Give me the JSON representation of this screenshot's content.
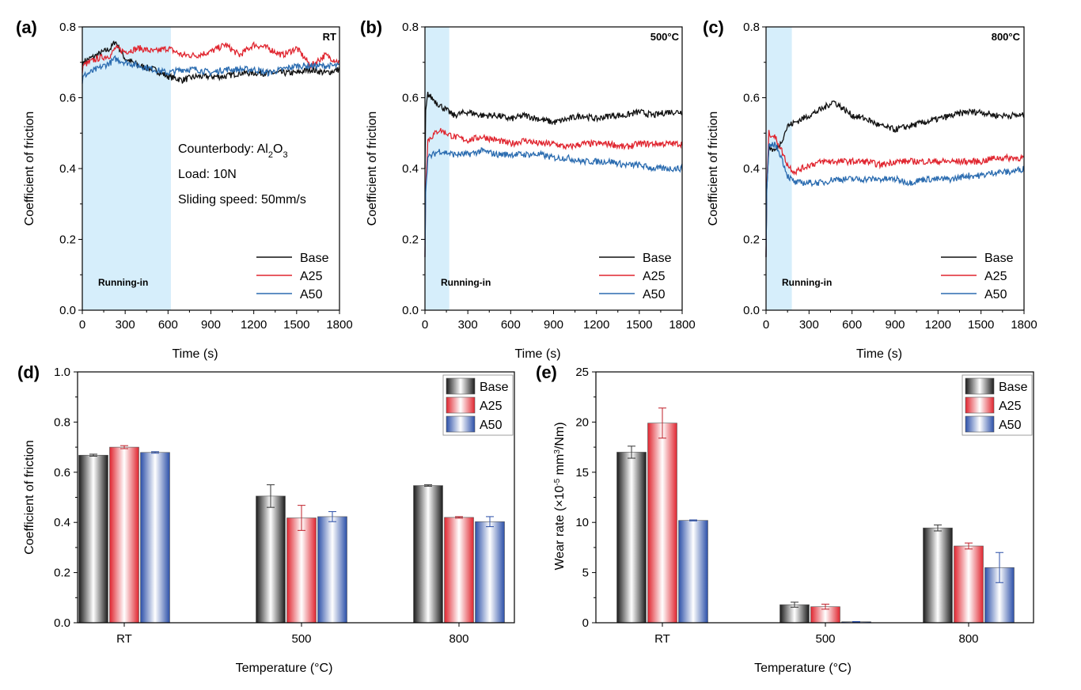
{
  "colors": {
    "Base": "#111111",
    "A25": "#e0252f",
    "A50": "#2b6cb0",
    "runin": "#d6eefb"
  },
  "top_panels": [
    {
      "label": "(a)",
      "temp": "RT",
      "ylabel": "Coefficient of friction",
      "xlabel": "Time (s)",
      "running_in": "Running-in",
      "running_in_end": 620,
      "annotation": {
        "l1": "Counterbody: Al",
        "l1sub": "2",
        "l1end": "O",
        "l1sub2": "3",
        "l2": "Load: 10N",
        "l3": "Sliding speed: 50mm/s"
      }
    },
    {
      "label": "(b)",
      "temp": "500°C",
      "ylabel": "Coefficient of friction",
      "xlabel": "Time (s)",
      "running_in": "Running-in",
      "running_in_end": 170
    },
    {
      "label": "(c)",
      "temp": "800°C",
      "ylabel": "Coefficient of friction",
      "xlabel": "Time (s)",
      "running_in": "Running-in",
      "running_in_end": 180
    }
  ],
  "bottom_panels": [
    {
      "label": "(d)",
      "ylabel": "Coefficient of friction",
      "xlabel": "Temperature (°C)"
    },
    {
      "label": "(e)",
      "ylabel": "Wear rate (×10",
      "ylabel_sup": "-5",
      "ylabel_mid": " mm",
      "ylabel_sup2": "3",
      "ylabel_end": "/Nm)",
      "xlabel": "Temperature (°C)"
    }
  ],
  "chart_data": [
    {
      "type": "line",
      "title": "RT",
      "xlabel": "Time (s)",
      "ylabel": "Coefficient of friction",
      "xlim": [
        0,
        1800
      ],
      "ylim": [
        0.0,
        0.8
      ],
      "xticks": [
        "0",
        "300",
        "600",
        "900",
        "1200",
        "1500",
        "1800"
      ],
      "yticks": [
        "0.0",
        "0.2",
        "0.4",
        "0.6",
        "0.8"
      ],
      "x": [
        0,
        100,
        200,
        230,
        300,
        400,
        500,
        600,
        700,
        800,
        900,
        1000,
        1100,
        1200,
        1300,
        1400,
        1500,
        1600,
        1700,
        1800
      ],
      "series": [
        {
          "name": "Base",
          "values": [
            0.7,
            0.72,
            0.74,
            0.76,
            0.71,
            0.69,
            0.68,
            0.66,
            0.65,
            0.66,
            0.66,
            0.66,
            0.67,
            0.67,
            0.67,
            0.67,
            0.67,
            0.68,
            0.67,
            0.68
          ]
        },
        {
          "name": "A25",
          "values": [
            0.69,
            0.71,
            0.72,
            0.74,
            0.73,
            0.74,
            0.73,
            0.74,
            0.72,
            0.72,
            0.73,
            0.75,
            0.72,
            0.75,
            0.74,
            0.72,
            0.74,
            0.69,
            0.72,
            0.7
          ]
        },
        {
          "name": "A50",
          "values": [
            0.66,
            0.68,
            0.7,
            0.71,
            0.7,
            0.69,
            0.68,
            0.67,
            0.68,
            0.68,
            0.67,
            0.68,
            0.68,
            0.68,
            0.67,
            0.68,
            0.69,
            0.69,
            0.69,
            0.69
          ]
        }
      ],
      "legend": "bottom-right"
    },
    {
      "type": "line",
      "title": "500°C",
      "xlabel": "Time (s)",
      "ylabel": "Coefficient of friction",
      "xlim": [
        0,
        1800
      ],
      "ylim": [
        0.0,
        0.8
      ],
      "xticks": [
        "0",
        "300",
        "600",
        "900",
        "1200",
        "1500",
        "1800"
      ],
      "yticks": [
        "0.0",
        "0.2",
        "0.4",
        "0.6",
        "0.8"
      ],
      "x": [
        0,
        20,
        100,
        200,
        300,
        400,
        500,
        600,
        700,
        800,
        900,
        1000,
        1100,
        1200,
        1300,
        1400,
        1500,
        1600,
        1700,
        1800
      ],
      "series": [
        {
          "name": "Base",
          "values": [
            0.55,
            0.61,
            0.58,
            0.55,
            0.56,
            0.55,
            0.55,
            0.54,
            0.55,
            0.54,
            0.53,
            0.54,
            0.55,
            0.54,
            0.55,
            0.55,
            0.56,
            0.55,
            0.56,
            0.56
          ]
        },
        {
          "name": "A25",
          "values": [
            0.3,
            0.48,
            0.51,
            0.49,
            0.48,
            0.49,
            0.48,
            0.47,
            0.48,
            0.47,
            0.47,
            0.46,
            0.47,
            0.47,
            0.47,
            0.46,
            0.47,
            0.47,
            0.47,
            0.47
          ]
        },
        {
          "name": "A50",
          "values": [
            0.3,
            0.43,
            0.45,
            0.44,
            0.44,
            0.45,
            0.44,
            0.44,
            0.44,
            0.44,
            0.43,
            0.43,
            0.42,
            0.42,
            0.42,
            0.41,
            0.41,
            0.4,
            0.4,
            0.4
          ]
        }
      ],
      "legend": "bottom-right"
    },
    {
      "type": "line",
      "title": "800°C",
      "xlabel": "Time (s)",
      "ylabel": "Coefficient of friction",
      "xlim": [
        0,
        1800
      ],
      "ylim": [
        0.0,
        0.8
      ],
      "xticks": [
        "0",
        "300",
        "600",
        "900",
        "1200",
        "1500",
        "1800"
      ],
      "yticks": [
        "0.0",
        "0.2",
        "0.4",
        "0.6",
        "0.8"
      ],
      "x": [
        0,
        20,
        60,
        100,
        150,
        200,
        300,
        400,
        470,
        600,
        700,
        800,
        900,
        1000,
        1100,
        1200,
        1300,
        1400,
        1500,
        1600,
        1700,
        1800
      ],
      "series": [
        {
          "name": "Base",
          "values": [
            0.3,
            0.46,
            0.45,
            0.47,
            0.52,
            0.53,
            0.55,
            0.57,
            0.59,
            0.55,
            0.54,
            0.52,
            0.51,
            0.52,
            0.53,
            0.54,
            0.55,
            0.56,
            0.56,
            0.55,
            0.55,
            0.55
          ]
        },
        {
          "name": "A25",
          "values": [
            0.3,
            0.5,
            0.49,
            0.46,
            0.41,
            0.39,
            0.41,
            0.42,
            0.42,
            0.42,
            0.42,
            0.41,
            0.42,
            0.42,
            0.42,
            0.42,
            0.42,
            0.42,
            0.42,
            0.43,
            0.43,
            0.43
          ]
        },
        {
          "name": "A50",
          "values": [
            0.3,
            0.46,
            0.47,
            0.44,
            0.38,
            0.36,
            0.36,
            0.36,
            0.37,
            0.37,
            0.37,
            0.37,
            0.37,
            0.36,
            0.37,
            0.37,
            0.37,
            0.38,
            0.38,
            0.39,
            0.39,
            0.4
          ]
        }
      ],
      "legend": "bottom-right"
    },
    {
      "type": "bar",
      "xlabel": "Temperature (°C)",
      "ylabel": "Coefficient of friction",
      "categories": [
        "RT",
        "500",
        "800"
      ],
      "ylim": [
        0.0,
        1.0
      ],
      "yticks": [
        "0.0",
        "0.2",
        "0.4",
        "0.6",
        "0.8",
        "1.0"
      ],
      "series": [
        {
          "name": "Base",
          "values": [
            0.668,
            0.505,
            0.547
          ],
          "errors": [
            0.004,
            0.045,
            0.003
          ]
        },
        {
          "name": "A25",
          "values": [
            0.7,
            0.418,
            0.42
          ],
          "errors": [
            0.006,
            0.05,
            0.003
          ]
        },
        {
          "name": "A50",
          "values": [
            0.679,
            0.423,
            0.403
          ],
          "errors": [
            0.003,
            0.02,
            0.02
          ]
        }
      ],
      "legend": "top-right"
    },
    {
      "type": "bar",
      "xlabel": "Temperature (°C)",
      "ylabel": "Wear rate (×10-5 mm3/Nm)",
      "categories": [
        "RT",
        "500",
        "800"
      ],
      "ylim": [
        0,
        25
      ],
      "yticks": [
        "0",
        "5",
        "10",
        "15",
        "20",
        "25"
      ],
      "series": [
        {
          "name": "Base",
          "values": [
            17.0,
            1.8,
            9.45
          ],
          "errors": [
            0.6,
            0.25,
            0.3
          ]
        },
        {
          "name": "A25",
          "values": [
            19.9,
            1.6,
            7.65
          ],
          "errors": [
            1.5,
            0.25,
            0.3
          ]
        },
        {
          "name": "A50",
          "values": [
            10.2,
            0.1,
            5.5
          ],
          "errors": [
            0.05,
            0.02,
            1.5
          ]
        }
      ],
      "legend": "top-right"
    }
  ]
}
